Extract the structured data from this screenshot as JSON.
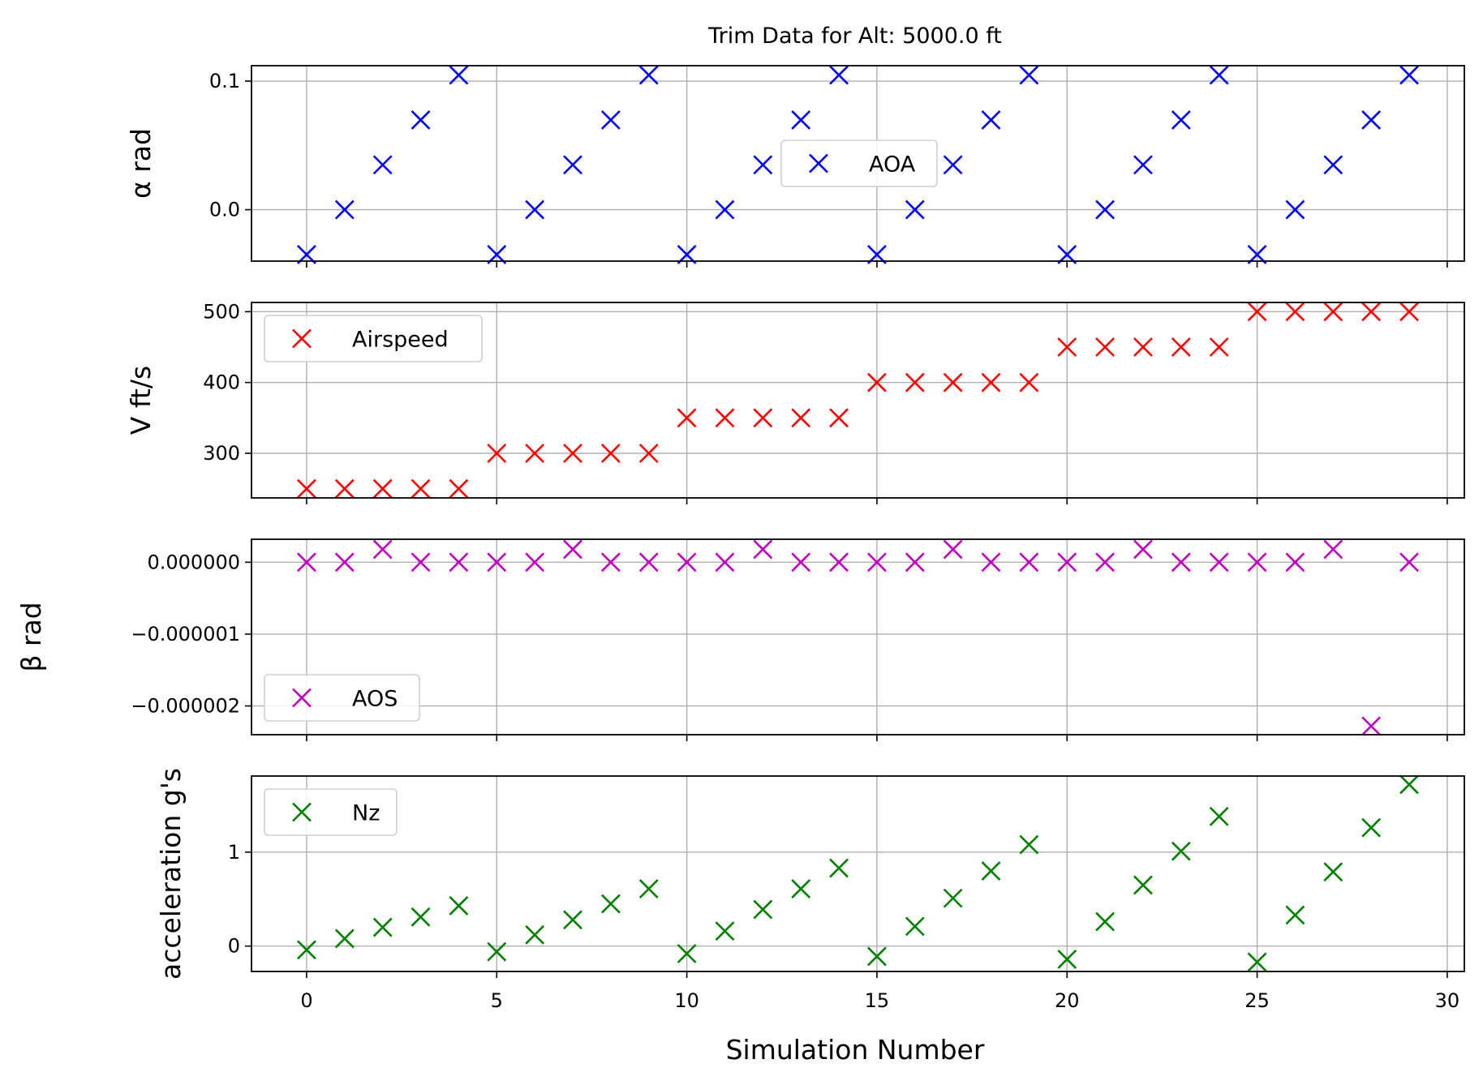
{
  "figure": {
    "title": "Trim Data for Alt: 5000.0 ft",
    "xlabel": "Simulation Number"
  },
  "chart_data": [
    {
      "type": "scatter",
      "marker": "x",
      "ylabel": "α rad",
      "xlim": [
        -1.45,
        30.45
      ],
      "ylim": [
        -0.04,
        0.112
      ],
      "xticks": [
        0,
        5,
        10,
        15,
        20,
        25,
        30
      ],
      "xtick_labels": [
        "0",
        "5",
        "10",
        "15",
        "20",
        "25",
        "30"
      ],
      "yticks": [
        0.0,
        0.1
      ],
      "ytick_labels": [
        "0.0",
        "0.1"
      ],
      "show_xtick_labels": false,
      "grid": true,
      "legend_position": "upper-center",
      "series": [
        {
          "name": "AOA",
          "color": "#0000ff",
          "x": [
            0,
            1,
            2,
            3,
            4,
            5,
            6,
            7,
            8,
            9,
            10,
            11,
            12,
            13,
            14,
            15,
            16,
            17,
            18,
            19,
            20,
            21,
            22,
            23,
            24,
            25,
            26,
            27,
            28,
            29
          ],
          "y": [
            -0.0349,
            0,
            0.0349,
            0.0698,
            0.1047,
            -0.0349,
            0,
            0.0349,
            0.0698,
            0.1047,
            -0.0349,
            0,
            0.0349,
            0.0698,
            0.1047,
            -0.0349,
            0,
            0.0349,
            0.0698,
            0.1047,
            -0.0349,
            0,
            0.0349,
            0.0698,
            0.1047,
            -0.0349,
            0,
            0.0349,
            0.0698,
            0.1047
          ]
        }
      ]
    },
    {
      "type": "scatter",
      "marker": "x",
      "ylabel": "V ft/s",
      "xlim": [
        -1.45,
        30.45
      ],
      "ylim": [
        237,
        513
      ],
      "xticks": [
        0,
        5,
        10,
        15,
        20,
        25,
        30
      ],
      "xtick_labels": [
        "0",
        "5",
        "10",
        "15",
        "20",
        "25",
        "30"
      ],
      "yticks": [
        300,
        400,
        500
      ],
      "ytick_labels": [
        "300",
        "400",
        "500"
      ],
      "show_xtick_labels": false,
      "grid": true,
      "legend_position": "upper-left",
      "series": [
        {
          "name": "Airspeed",
          "color": "#ff0000",
          "x": [
            0,
            1,
            2,
            3,
            4,
            5,
            6,
            7,
            8,
            9,
            10,
            11,
            12,
            13,
            14,
            15,
            16,
            17,
            18,
            19,
            20,
            21,
            22,
            23,
            24,
            25,
            26,
            27,
            28,
            29
          ],
          "y": [
            250,
            250,
            250,
            250,
            250,
            300,
            300,
            300,
            300,
            300,
            350,
            350,
            350,
            350,
            350,
            400,
            400,
            400,
            400,
            400,
            450,
            450,
            450,
            450,
            450,
            500,
            500,
            500,
            500,
            500
          ]
        }
      ]
    },
    {
      "type": "scatter",
      "marker": "x",
      "ylabel": "β rad",
      "xlim": [
        -1.45,
        30.45
      ],
      "ylim": [
        -2.4e-06,
        3.2e-07
      ],
      "xticks": [
        0,
        5,
        10,
        15,
        20,
        25,
        30
      ],
      "xtick_labels": [
        "0",
        "5",
        "10",
        "15",
        "20",
        "25",
        "30"
      ],
      "yticks": [
        -2e-06,
        -1e-06,
        0
      ],
      "ytick_labels": [
        "−0.000002",
        "−0.000001",
        "0.000000"
      ],
      "show_xtick_labels": false,
      "grid": true,
      "legend_position": "lower-left",
      "series": [
        {
          "name": "AOS",
          "color": "#bf00bf",
          "x": [
            0,
            1,
            2,
            3,
            4,
            5,
            6,
            7,
            8,
            9,
            10,
            11,
            12,
            13,
            14,
            15,
            16,
            17,
            18,
            19,
            20,
            21,
            22,
            23,
            24,
            25,
            26,
            27,
            28,
            29
          ],
          "y": [
            0,
            0,
            1.8e-07,
            0,
            0,
            0,
            0,
            1.8e-07,
            0,
            0,
            0,
            0,
            1.8e-07,
            0,
            0,
            0,
            0,
            1.8e-07,
            0,
            0,
            0,
            0,
            1.8e-07,
            0,
            0,
            0,
            0,
            1.8e-07,
            -2.28e-06,
            0
          ]
        }
      ]
    },
    {
      "type": "scatter",
      "marker": "x",
      "ylabel": "acceleration g's",
      "xlim": [
        -1.45,
        30.45
      ],
      "ylim": [
        -0.27,
        1.81
      ],
      "xticks": [
        0,
        5,
        10,
        15,
        20,
        25,
        30
      ],
      "xtick_labels": [
        "0",
        "5",
        "10",
        "15",
        "20",
        "25",
        "30"
      ],
      "yticks": [
        0,
        1
      ],
      "ytick_labels": [
        "0",
        "1"
      ],
      "show_xtick_labels": true,
      "grid": true,
      "legend_position": "upper-left",
      "series": [
        {
          "name": "Nz",
          "color": "#008000",
          "x": [
            0,
            1,
            2,
            3,
            4,
            5,
            6,
            7,
            8,
            9,
            10,
            11,
            12,
            13,
            14,
            15,
            16,
            17,
            18,
            19,
            20,
            21,
            22,
            23,
            24,
            25,
            26,
            27,
            28,
            29
          ],
          "y": [
            -0.04,
            0.08,
            0.2,
            0.31,
            0.43,
            -0.06,
            0.12,
            0.28,
            0.45,
            0.61,
            -0.08,
            0.16,
            0.39,
            0.61,
            0.83,
            -0.11,
            0.21,
            0.51,
            0.8,
            1.08,
            -0.14,
            0.26,
            0.65,
            1.01,
            1.38,
            -0.17,
            0.33,
            0.79,
            1.26,
            1.72
          ]
        }
      ]
    }
  ]
}
